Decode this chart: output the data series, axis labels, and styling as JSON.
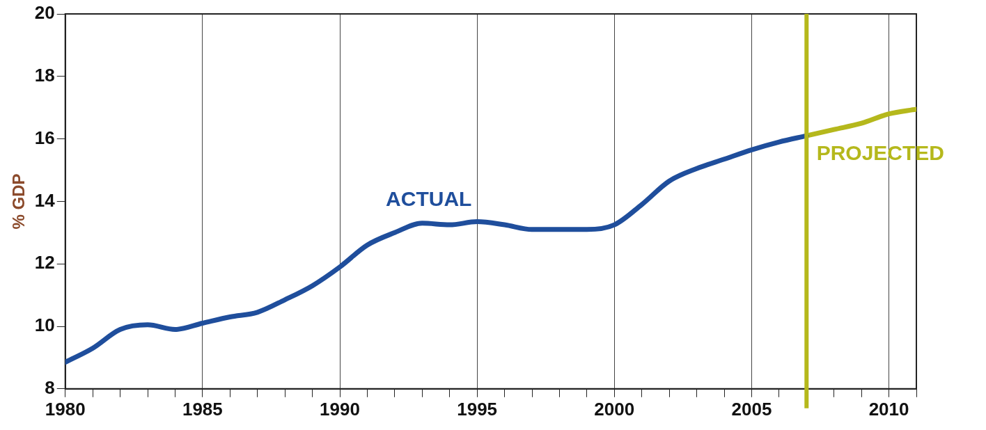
{
  "chart_data": {
    "type": "line",
    "ylabel": "% GDP",
    "xlim": [
      1980,
      2011
    ],
    "xticks": [
      1980,
      {
        "value": 1981,
        "label": null
      },
      {
        "value": 1982,
        "label": null
      },
      {
        "value": 1983,
        "label": null
      },
      {
        "value": 1984,
        "label": null
      },
      1985,
      {
        "value": 1986,
        "label": null
      },
      {
        "value": 1987,
        "label": null
      },
      {
        "value": 1988,
        "label": null
      },
      {
        "value": 1989,
        "label": null
      },
      1990,
      {
        "value": 1991,
        "label": null
      },
      {
        "value": 1992,
        "label": null
      },
      {
        "value": 1993,
        "label": null
      },
      {
        "value": 1994,
        "label": null
      },
      1995,
      {
        "value": 1996,
        "label": null
      },
      {
        "value": 1997,
        "label": null
      },
      {
        "value": 1998,
        "label": null
      },
      {
        "value": 1999,
        "label": null
      },
      2000,
      {
        "value": 2001,
        "label": null
      },
      {
        "value": 2002,
        "label": null
      },
      {
        "value": 2003,
        "label": null
      },
      {
        "value": 2004,
        "label": null
      },
      2005,
      {
        "value": 2006,
        "label": null
      },
      {
        "value": 2007,
        "label": null
      },
      {
        "value": 2008,
        "label": null
      },
      {
        "value": 2009,
        "label": null
      },
      2010,
      {
        "value": 2011,
        "label": null
      }
    ],
    "ylim": [
      8,
      20
    ],
    "yticks": [
      8,
      10,
      12,
      14,
      16,
      18,
      20
    ],
    "grid": "x",
    "legend": false,
    "marker": "none",
    "line_style": "solid",
    "series": [
      {
        "name": "ACTUAL",
        "color": "#1f4e9c",
        "x": [
          1980,
          1981,
          1982,
          1983,
          1984,
          1985,
          1986,
          1987,
          1988,
          1989,
          1990,
          1991,
          1992,
          1993,
          1994,
          1995,
          1996,
          1997,
          1998,
          1999,
          2000,
          2001,
          2002,
          2003,
          2004,
          2005,
          2006,
          2007
        ],
        "values": [
          8.85,
          9.3,
          9.9,
          10.05,
          9.9,
          10.1,
          10.3,
          10.45,
          10.85,
          11.3,
          11.9,
          12.6,
          13.0,
          13.3,
          13.25,
          13.35,
          13.25,
          13.1,
          13.1,
          13.1,
          13.25,
          13.9,
          14.65,
          15.05,
          15.35,
          15.65,
          15.9,
          16.1
        ]
      },
      {
        "name": "PROJECTED",
        "color": "#b5b81c",
        "x": [
          2007,
          2008,
          2009,
          2010,
          2011
        ],
        "values": [
          16.1,
          16.3,
          16.5,
          16.8,
          16.95
        ]
      }
    ],
    "ref_lines": [
      {
        "axis": "x",
        "value": 2007,
        "color": "#b5b81c"
      }
    ]
  }
}
